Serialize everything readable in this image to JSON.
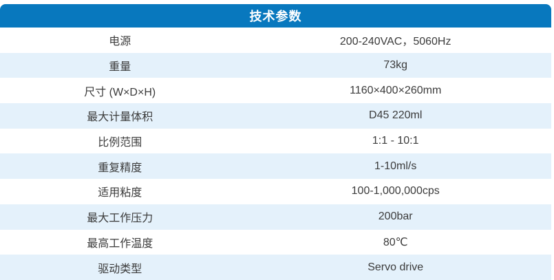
{
  "colors": {
    "header_bg": "#0878BE",
    "alt_row_bg": "#E4F1FB",
    "header_text": "#FFFFFF",
    "body_text": "#3B3B3B"
  },
  "table": {
    "title": "技术参数",
    "rows": [
      {
        "label": "电源",
        "value": "200-240VAC，5060Hz"
      },
      {
        "label": "重量",
        "value": "73kg"
      },
      {
        "label": "尺寸 (W×D×H)",
        "value": "1160×400×260mm"
      },
      {
        "label": "最大计量体积",
        "value": "D45 220ml"
      },
      {
        "label": "比例范围",
        "value": "1:1 - 10:1"
      },
      {
        "label": "重复精度",
        "value": "1-10ml/s"
      },
      {
        "label": "适用粘度",
        "value": "100-1,000,000cps"
      },
      {
        "label": "最大工作压力",
        "value": "200bar"
      },
      {
        "label": "最高工作温度",
        "value": "80℃"
      },
      {
        "label": "驱动类型",
        "value": "Servo drive"
      }
    ]
  }
}
